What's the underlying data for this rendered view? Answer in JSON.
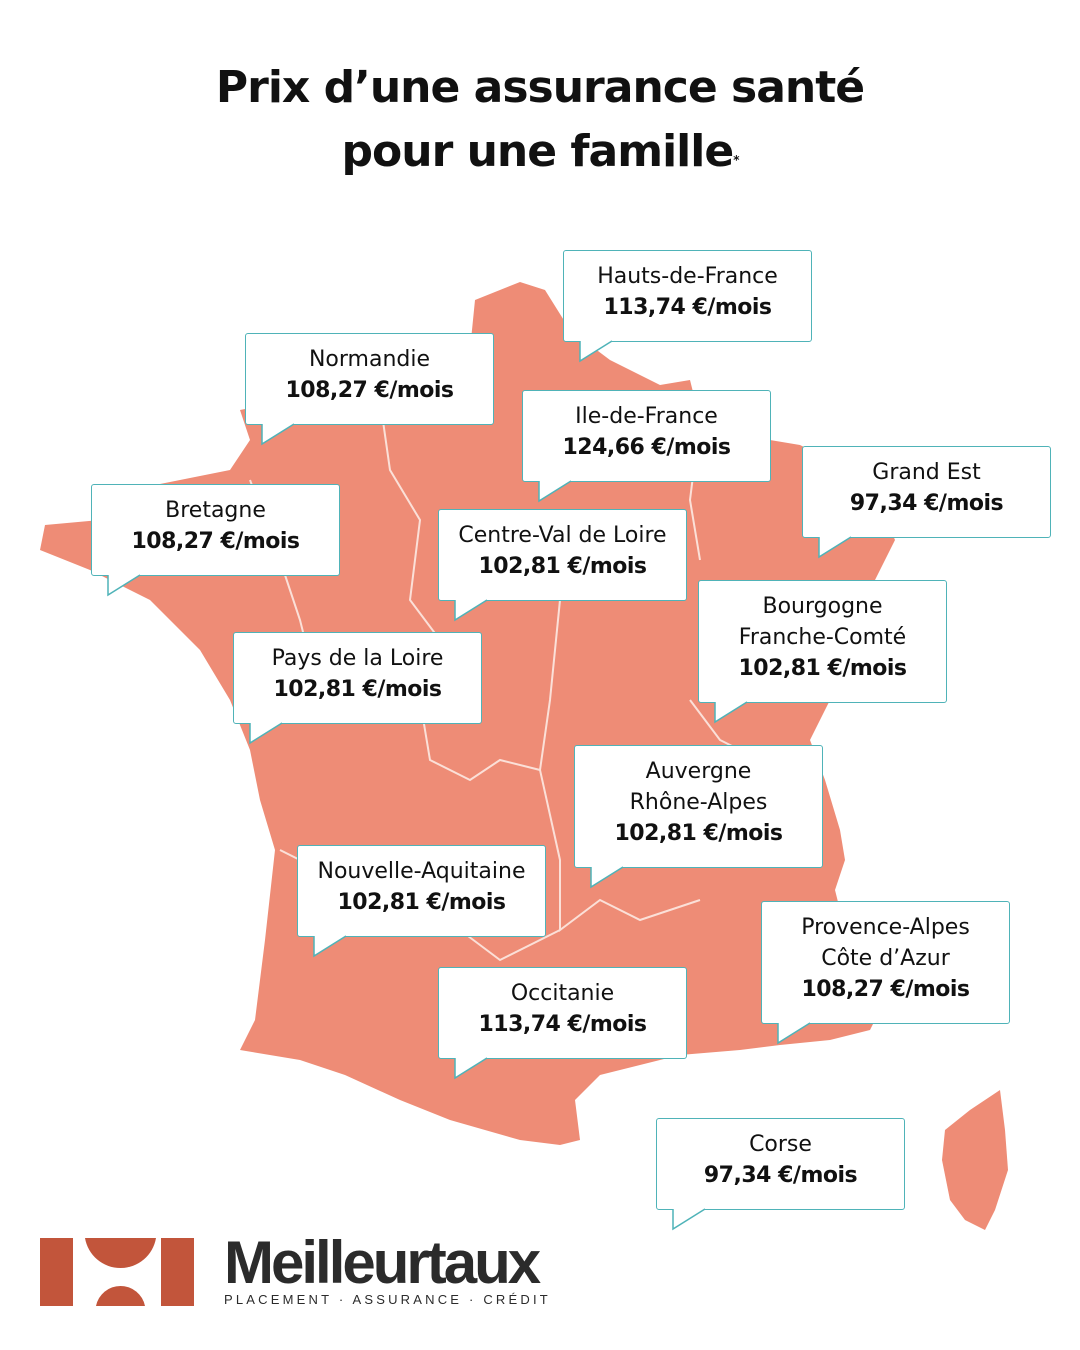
{
  "title": {
    "line1": "Prix d’une assurance santé",
    "line2": "pour une famille",
    "footnote_mark": "*"
  },
  "colors": {
    "map_fill": "#ee8c76",
    "callout_border": "#4fb3b8",
    "logo_red": "#c2553b",
    "brand_text": "#2b2b2b"
  },
  "regions": [
    {
      "name": "Hauts-de-France",
      "price": "113,74 €/mois"
    },
    {
      "name": "Normandie",
      "price": "108,27 €/mois"
    },
    {
      "name": "Ile-de-France",
      "price": "124,66 €/mois"
    },
    {
      "name": "Grand Est",
      "price": "97,34 €/mois"
    },
    {
      "name": "Bretagne",
      "price": "108,27 €/mois"
    },
    {
      "name": "Centre-Val de Loire",
      "price": "102,81 €/mois"
    },
    {
      "name": "Bourgogne Franche-Comté",
      "name_line1": "Bourgogne",
      "name_line2": "Franche-Comté",
      "price": "102,81 €/mois"
    },
    {
      "name": "Pays de la Loire",
      "price": "102,81 €/mois"
    },
    {
      "name": "Auvergne Rhône-Alpes",
      "name_line1": "Auvergne",
      "name_line2": "Rhône-Alpes",
      "price": "102,81 €/mois"
    },
    {
      "name": "Nouvelle-Aquitaine",
      "price": "102,81 €/mois"
    },
    {
      "name": "Provence-Alpes Côte d’Azur",
      "name_line1": "Provence-Alpes",
      "name_line2": "Côte d’Azur",
      "price": "108,27 €/mois"
    },
    {
      "name": "Occitanie",
      "price": "113,74 €/mois"
    },
    {
      "name": "Corse",
      "price": "97,34 €/mois"
    }
  ],
  "logo": {
    "brand": "Meilleurtaux",
    "tagline": "PLACEMENT · ASSURANCE · CRÉDIT"
  }
}
